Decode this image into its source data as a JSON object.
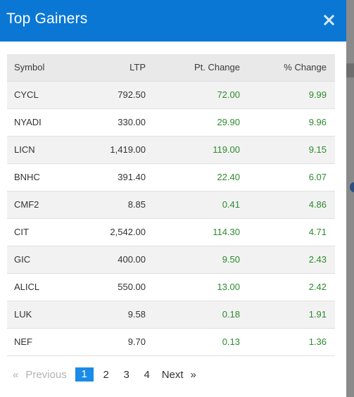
{
  "modal": {
    "title": "Top Gainers",
    "close_icon": "close-icon"
  },
  "table": {
    "headers": [
      "Symbol",
      "LTP",
      "Pt. Change",
      "% Change"
    ],
    "rows": [
      {
        "symbol": "CYCL",
        "ltp": "792.50",
        "pt_change": "72.00",
        "pct_change": "9.99"
      },
      {
        "symbol": "NYADI",
        "ltp": "330.00",
        "pt_change": "29.90",
        "pct_change": "9.96"
      },
      {
        "symbol": "LICN",
        "ltp": "1,419.00",
        "pt_change": "119.00",
        "pct_change": "9.15"
      },
      {
        "symbol": "BNHC",
        "ltp": "391.40",
        "pt_change": "22.40",
        "pct_change": "6.07"
      },
      {
        "symbol": "CMF2",
        "ltp": "8.85",
        "pt_change": "0.41",
        "pct_change": "4.86"
      },
      {
        "symbol": "CIT",
        "ltp": "2,542.00",
        "pt_change": "114.30",
        "pct_change": "4.71"
      },
      {
        "symbol": "GIC",
        "ltp": "400.00",
        "pt_change": "9.50",
        "pct_change": "2.43"
      },
      {
        "symbol": "ALICL",
        "ltp": "550.00",
        "pt_change": "13.00",
        "pct_change": "2.42"
      },
      {
        "symbol": "LUK",
        "ltp": "9.58",
        "pt_change": "0.18",
        "pct_change": "1.91"
      },
      {
        "symbol": "NEF",
        "ltp": "9.70",
        "pt_change": "0.13",
        "pct_change": "1.36"
      }
    ]
  },
  "pagination": {
    "prev_arrow": "«",
    "prev_label": "Previous",
    "pages": [
      "1",
      "2",
      "3",
      "4"
    ],
    "active_page": "1",
    "next_label": "Next",
    "next_arrow": "»"
  },
  "colors": {
    "header_bg": "#0a77d5",
    "gain_text": "#2d8a2d",
    "active_page_bg": "#1a8be6"
  }
}
